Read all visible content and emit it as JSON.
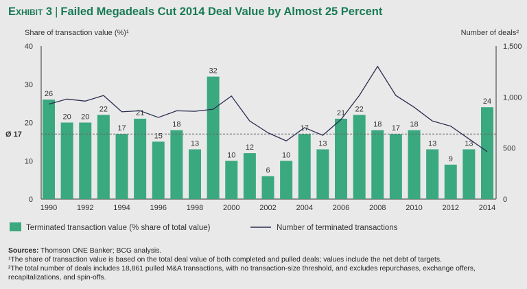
{
  "title": {
    "exhibit": "Exhibit 3",
    "text": "Failed Megadeals Cut 2014 Deal Value by Almost 25 Percent"
  },
  "chart_data": {
    "type": "bar",
    "categories": [
      1990,
      1991,
      1992,
      1993,
      1994,
      1995,
      1996,
      1997,
      1998,
      1999,
      2000,
      2001,
      2002,
      2003,
      2004,
      2005,
      2006,
      2007,
      2008,
      2009,
      2010,
      2011,
      2012,
      2013,
      2014
    ],
    "x_tick_labels": [
      "1990",
      "1992",
      "1994",
      "1996",
      "1998",
      "2000",
      "2002",
      "2004",
      "2006",
      "2008",
      "2010",
      "2012",
      "2014"
    ],
    "ylabel": "Share of transaction value (%)¹",
    "y2label": "Number of deals²",
    "ylim": [
      0,
      40
    ],
    "y2lim": [
      0,
      1500
    ],
    "y_ticks": [
      "0",
      "10",
      "20",
      "30",
      "40"
    ],
    "y2_ticks": [
      "0",
      "500",
      "1,000",
      "1,500"
    ],
    "average": {
      "value": 17,
      "label": "Ø 17"
    },
    "series": [
      {
        "name": "Terminated transaction value (% share of total value)",
        "type": "bar",
        "axis": "left",
        "color": "#3aa97f",
        "values": [
          26,
          20,
          20,
          22,
          17,
          21,
          15,
          18,
          13,
          32,
          10,
          12,
          6,
          10,
          17,
          13,
          21,
          22,
          18,
          17,
          18,
          13,
          9,
          13,
          24
        ]
      },
      {
        "name": "Number of terminated transactions",
        "type": "line",
        "axis": "right",
        "color": "#2b2d4e",
        "values": [
          930,
          980,
          960,
          1015,
          855,
          865,
          800,
          865,
          860,
          880,
          1010,
          765,
          650,
          570,
          700,
          625,
          780,
          1015,
          1300,
          1015,
          900,
          765,
          715,
          590,
          465
        ]
      }
    ],
    "grid": false,
    "legend": "bottom-left"
  },
  "notes": {
    "sources_label": "Sources:",
    "sources": " Thomson ONE Banker; BCG analysis.",
    "note1": "¹The share of transaction value is based on the total deal value of both completed and pulled deals; values include the net debt of targets.",
    "note2": "²The total number of deals includes 18,861 pulled M&A transactions, with no transaction-size threshold, and excludes repurchases, exchange offers, recapitalizations, and spin-offs."
  }
}
